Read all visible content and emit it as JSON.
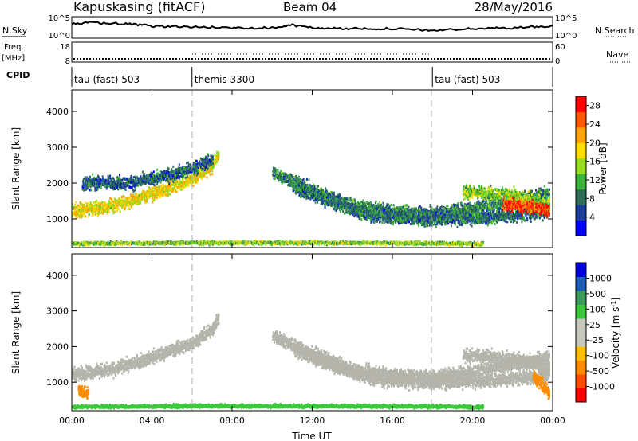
{
  "header": {
    "station": "Kapuskasing (fitACF)",
    "beam": "Beam 04",
    "date": "28/May/2016"
  },
  "strip_labels": {
    "nsky": "N.Sky",
    "nsearch": "N.Search",
    "freq_line1": "Freq.",
    "freq_line2": "[MHz]",
    "nave": "Nave",
    "cpid": "CPID",
    "noise_top": "10^5",
    "noise_bottom": "10^0",
    "freq_top": "18",
    "freq_bottom": "8",
    "nave_top": "60",
    "nave_bottom": "0"
  },
  "cpid_segments": [
    {
      "start_hour": 0,
      "label": "tau (fast) 503"
    },
    {
      "start_hour": 6,
      "label": "themis 3300"
    },
    {
      "start_hour": 18,
      "label": "tau (fast) 503"
    }
  ],
  "colors": {
    "power_scale": [
      "#0000ff",
      "#1e3e9c",
      "#2e6e59",
      "#3cb43c",
      "#98dd22",
      "#ffdd00",
      "#ffa500",
      "#ff5a00",
      "#ff0000"
    ],
    "velocity_scale": [
      "#ff0000",
      "#ff4d00",
      "#ff8c00",
      "#ffbf00",
      "#c8c8be",
      "#c8c8be",
      "#3cc83c",
      "#3c9a5a",
      "#1e5eb4",
      "#0000dd"
    ],
    "ground_scatter": "#b4b4aa"
  },
  "chart_data": [
    {
      "type": "heatmap",
      "name": "power",
      "ylabel": "Slant Range [km]",
      "xlim": [
        0,
        24
      ],
      "ylim": [
        200,
        4600
      ],
      "y_ticks": [
        "1000",
        "2000",
        "3000",
        "4000"
      ],
      "x_ticks": [
        "00:00",
        "04:00",
        "08:00",
        "12:00",
        "16:00",
        "20:00",
        "00:00"
      ],
      "colorbar_label": "Power [dB]",
      "colorbar_ticks": [
        "4",
        "8",
        "12",
        "16",
        "20",
        "24",
        "28"
      ],
      "colorbar_range": [
        0,
        30
      ],
      "features": [
        {
          "x": [
            0,
            2,
            4,
            5,
            6,
            7,
            7.3
          ],
          "y": [
            1230,
            1350,
            1700,
            1900,
            2100,
            2500,
            2800
          ],
          "value": 18
        },
        {
          "x": [
            0.5,
            3,
            5,
            6,
            7
          ],
          "y": [
            2000,
            2000,
            2250,
            2400,
            2650
          ],
          "value": 7
        },
        {
          "x": [
            10,
            12,
            14,
            16,
            18,
            20,
            22,
            23.8
          ],
          "y": [
            2300,
            1800,
            1350,
            1200,
            1150,
            1300,
            1500,
            1700
          ],
          "value": 9
        },
        {
          "x": [
            11,
            13,
            15,
            18,
            21,
            23.8
          ],
          "y": [
            1900,
            1450,
            1080,
            980,
            1050,
            1200
          ],
          "value": 8
        },
        {
          "x": [
            19.5,
            21,
            22,
            23,
            23.8
          ],
          "y": [
            1750,
            1700,
            1650,
            1500,
            1400
          ],
          "value": 14
        },
        {
          "x": [
            21.5,
            22.5,
            23.8
          ],
          "y": [
            1400,
            1350,
            1250
          ],
          "value": 26
        },
        {
          "x": [
            0,
            6,
            10,
            14,
            18,
            20.5
          ],
          "y": [
            310,
            330,
            330,
            330,
            320,
            300
          ],
          "value": 14
        }
      ]
    },
    {
      "type": "heatmap",
      "name": "velocity",
      "ylabel": "Slant Range [km]",
      "xlabel": "Time UT",
      "xlim": [
        0,
        24
      ],
      "ylim": [
        200,
        4600
      ],
      "y_ticks": [
        "1000",
        "2000",
        "3000",
        "4000"
      ],
      "x_ticks": [
        "00:00",
        "04:00",
        "08:00",
        "12:00",
        "16:00",
        "20:00",
        "00:00"
      ],
      "colorbar_label": "Velocity [m s^-1]",
      "colorbar_ticks": [
        "1000",
        "500",
        "100",
        "25",
        "-25",
        "-100",
        "-500",
        "-1000"
      ],
      "features": [
        {
          "x": [
            0,
            2,
            4,
            5,
            6,
            7,
            7.3
          ],
          "y": [
            1230,
            1350,
            1700,
            1900,
            2100,
            2500,
            2800
          ],
          "value": 0
        },
        {
          "x": [
            10,
            12,
            14,
            16,
            18,
            20,
            22,
            23.8
          ],
          "y": [
            2300,
            1800,
            1350,
            1200,
            1150,
            1300,
            1500,
            1700
          ],
          "value": 0
        },
        {
          "x": [
            11,
            13,
            15,
            18,
            21,
            23.8
          ],
          "y": [
            1900,
            1450,
            1080,
            980,
            1050,
            1200
          ],
          "value": 0
        },
        {
          "x": [
            19.5,
            21,
            22,
            23,
            23.8
          ],
          "y": [
            1750,
            1700,
            1650,
            1500,
            1400
          ],
          "value": 0
        },
        {
          "x": [
            0.3,
            0.8
          ],
          "y": [
            780,
            700
          ],
          "value": -300
        },
        {
          "x": [
            23,
            23.8
          ],
          "y": [
            1200,
            700
          ],
          "value": -250
        },
        {
          "x": [
            0,
            6,
            10,
            14,
            18,
            20.5
          ],
          "y": [
            310,
            330,
            330,
            330,
            320,
            300
          ],
          "value": 60
        }
      ]
    },
    {
      "type": "line",
      "name": "sky-noise",
      "x": [
        0,
        1,
        2,
        3,
        4,
        6,
        8,
        10,
        11,
        12,
        14,
        16,
        18,
        20,
        22,
        24
      ],
      "y": [
        0.7,
        0.8,
        0.75,
        0.7,
        0.6,
        0.55,
        0.5,
        0.5,
        0.65,
        0.5,
        0.45,
        0.45,
        0.35,
        0.45,
        0.5,
        0.6
      ]
    }
  ]
}
